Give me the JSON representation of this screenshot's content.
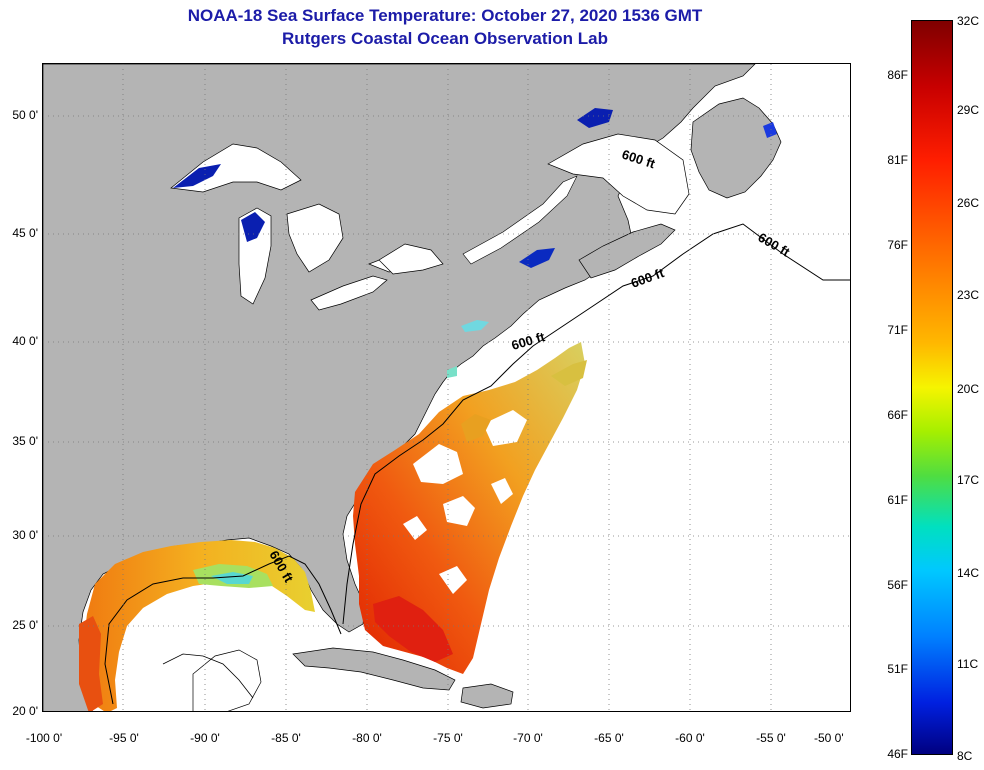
{
  "title": {
    "line1": "NOAA-18 Sea Surface Temperature:  October 27, 2020 1536 GMT",
    "line2": "Rutgers Coastal Ocean Observation Lab"
  },
  "axes": {
    "lat_labels": [
      "50 0'",
      "45 0'",
      "40 0'",
      "35 0'",
      "30 0'",
      "25 0'",
      "20 0'"
    ],
    "lon_labels": [
      "-100 0'",
      "-95 0'",
      "-90 0'",
      "-85 0'",
      "-80 0'",
      "-75 0'",
      "-70 0'",
      "-65 0'",
      "-60 0'",
      "-55 0'",
      "-50 0'"
    ]
  },
  "isobaths": [
    "600 ft",
    "600 ft",
    "600 ft",
    "600 ft",
    "600 ft"
  ],
  "colorbar": {
    "fahrenheit": [
      "86F",
      "81F",
      "76F",
      "71F",
      "66F",
      "61F",
      "56F",
      "51F",
      "46F"
    ],
    "celsius": [
      "32C",
      "29C",
      "26C",
      "23C",
      "20C",
      "17C",
      "14C",
      "11C",
      "8C"
    ]
  },
  "colors": {
    "land": "#b4b4b4",
    "title": "#1c1ca8",
    "lake_cold": "#0a1fb0"
  }
}
